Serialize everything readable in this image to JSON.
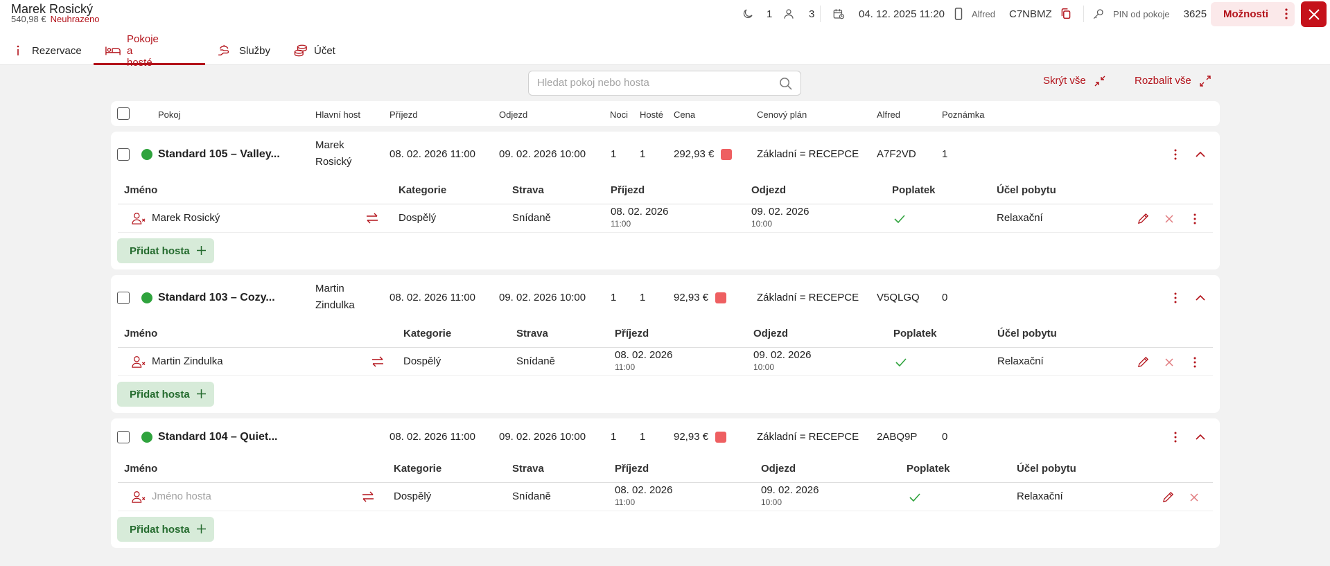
{
  "header": {
    "guest_name": "Marek Rosický",
    "total": "540,98 €",
    "payment_status": "Neuhrazeno",
    "nights": "1",
    "guests": "3",
    "datetime": "04. 12. 2025 11:20",
    "channel": "Alfred",
    "code": "C7NBMZ",
    "pin_label": "PIN od pokoje",
    "pin": "3625",
    "options_label": "Možnosti"
  },
  "tabs": [
    {
      "label": "Rezervace",
      "icon": "info-icon"
    },
    {
      "label": "Pokoje a hosté",
      "icon": "bed-icon"
    },
    {
      "label": "Služby",
      "icon": "service-hand-icon"
    },
    {
      "label": "Účet",
      "icon": "coins-icon"
    }
  ],
  "toolbar": {
    "search_placeholder": "Hledat pokoj nebo hosta",
    "collapse_all": "Skrýt vše",
    "expand_all": "Rozbalit vše"
  },
  "columns": {
    "room": "Pokoj",
    "main_guest": "Hlavní host",
    "arrival": "Příjezd",
    "departure": "Odjezd",
    "nights": "Noci",
    "guests": "Hosté",
    "price": "Cena",
    "rate_plan": "Cenový plán",
    "alfred": "Alfred",
    "note": "Poznámka"
  },
  "guest_columns": {
    "name": "Jméno",
    "category": "Kategorie",
    "board": "Strava",
    "arrival": "Příjezd",
    "departure": "Odjezd",
    "fee": "Poplatek",
    "purpose": "Účel pobytu"
  },
  "add_guest_label": "Přidat hosta",
  "colors": {
    "accent": "#b3121a",
    "occupied": "#2fa33d",
    "unpaid": "#ee5f61",
    "add_button_bg": "#d7ebd9"
  },
  "rooms": [
    {
      "name": "Standard 105 – Valley...",
      "host_first": "Marek",
      "host_last": "Rosický",
      "arrival": "08. 02. 2026 11:00",
      "departure": "09. 02. 2026 10:00",
      "nights": "1",
      "guests": "1",
      "price": "292,93 €",
      "rate_plan": "Základní = RECEPCE",
      "alfred": "A7F2VD",
      "note": "1",
      "guest": {
        "name": "Marek Rosický",
        "category": "Dospělý",
        "board": "Snídaně",
        "arrival_date": "08. 02. 2026",
        "arrival_time": "11:00",
        "departure_date": "09. 02. 2026",
        "departure_time": "10:00",
        "purpose": "Relaxační"
      }
    },
    {
      "name": "Standard 103 – Cozy...",
      "host_first": "Martin",
      "host_last": "Zindulka",
      "arrival": "08. 02. 2026 11:00",
      "departure": "09. 02. 2026 10:00",
      "nights": "1",
      "guests": "1",
      "price": "92,93 €",
      "rate_plan": "Základní = RECEPCE",
      "alfred": "V5QLGQ",
      "note": "0",
      "guest": {
        "name": "Martin Zindulka",
        "category": "Dospělý",
        "board": "Snídaně",
        "arrival_date": "08. 02. 2026",
        "arrival_time": "11:00",
        "departure_date": "09. 02. 2026",
        "departure_time": "10:00",
        "purpose": "Relaxační"
      }
    },
    {
      "name": "Standard 104 – Quiet...",
      "arrival": "08. 02. 2026 11:00",
      "departure": "09. 02. 2026 10:00",
      "nights": "1",
      "guests": "1",
      "price": "92,93 €",
      "rate_plan": "Základní = RECEPCE",
      "alfred": "2ABQ9P",
      "note": "0",
      "guest": {
        "name_placeholder": "Jméno hosta",
        "category": "Dospělý",
        "board": "Snídaně",
        "arrival_date": "08. 02. 2026",
        "arrival_time": "11:00",
        "departure_date": "09. 02. 2026",
        "departure_time": "10:00",
        "purpose": "Relaxační"
      }
    }
  ]
}
